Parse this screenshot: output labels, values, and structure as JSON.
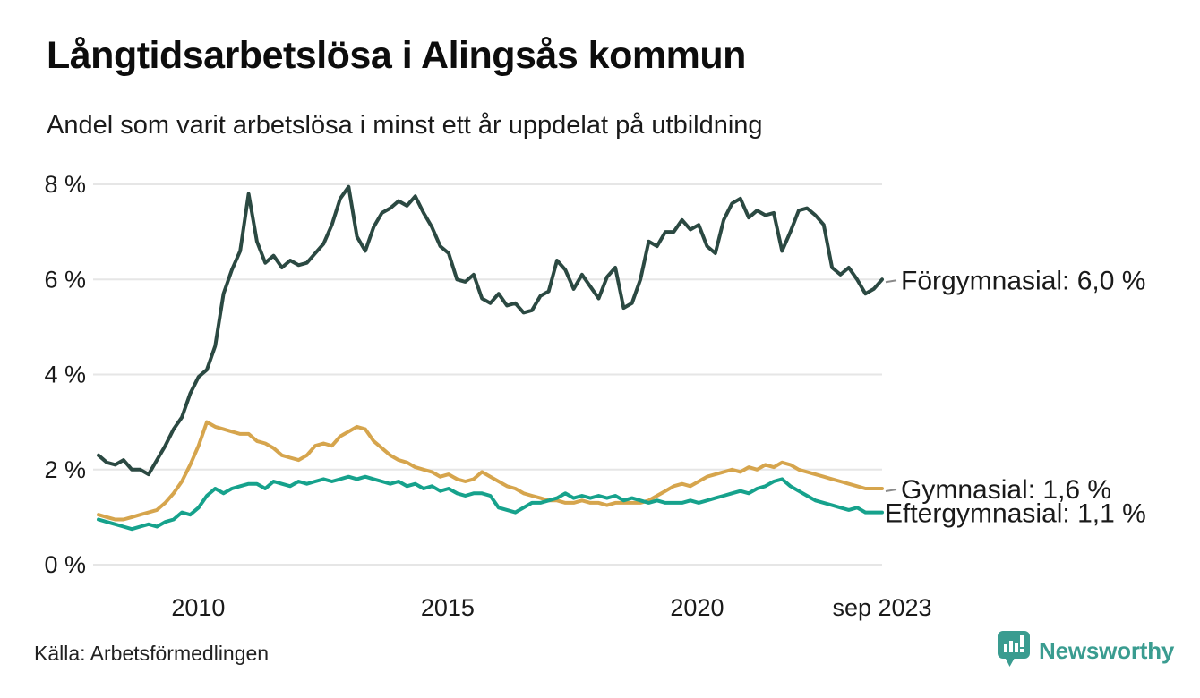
{
  "header": {
    "title": "Långtidsarbetslösa i Alingsås kommun",
    "subtitle": "Andel som varit arbetslösa i minst ett år uppdelat på utbildning"
  },
  "footer": {
    "source": "Källa: Arbetsförmedlingen",
    "brand": "Newsworthy"
  },
  "colors": {
    "text": "#1a1a1a",
    "grid": "#e6e6e6",
    "connector": "#8a8a8a",
    "brand_teal": "#3a9c90"
  },
  "chart_data": {
    "type": "line",
    "title": "Långtidsarbetslösa i Alingsås kommun",
    "subtitle": "Andel som varit arbetslösa i minst ett år uppdelat på utbildning",
    "unit": "%",
    "grid": true,
    "legend_position": "end-of-line-annotations",
    "x_axis": {
      "start": 2008.0,
      "end": 2023.708,
      "ticks": [
        {
          "label": "2010",
          "value": 2010.0
        },
        {
          "label": "2015",
          "value": 2015.0
        },
        {
          "label": "2020",
          "value": 2020.0
        },
        {
          "label": "sep 2023",
          "value": 2023.708
        }
      ]
    },
    "y_axis": {
      "range": [
        0,
        8
      ],
      "ticks": [
        {
          "label": "0 %",
          "value": 0
        },
        {
          "label": "2 %",
          "value": 2
        },
        {
          "label": "4 %",
          "value": 4
        },
        {
          "label": "6 %",
          "value": 6
        },
        {
          "label": "8 %",
          "value": 8
        }
      ]
    },
    "series": [
      {
        "name": "Förgymnasial",
        "end_label": "Förgymnasial: 6,0 %",
        "last_value_label": "6,0 %",
        "color": "#2b4942",
        "connector": true,
        "values": [
          2.3,
          2.15,
          2.1,
          2.2,
          2.0,
          2.0,
          1.9,
          2.2,
          2.5,
          2.85,
          3.1,
          3.6,
          3.95,
          4.1,
          4.6,
          5.7,
          6.2,
          6.6,
          7.8,
          6.8,
          6.35,
          6.5,
          6.25,
          6.4,
          6.3,
          6.35,
          6.55,
          6.75,
          7.15,
          7.7,
          7.95,
          6.9,
          6.6,
          7.1,
          7.4,
          7.5,
          7.65,
          7.55,
          7.75,
          7.4,
          7.1,
          6.7,
          6.55,
          6.0,
          5.95,
          6.1,
          5.6,
          5.5,
          5.7,
          5.45,
          5.5,
          5.3,
          5.35,
          5.65,
          5.75,
          6.4,
          6.2,
          5.8,
          6.1,
          5.85,
          5.6,
          6.05,
          6.25,
          5.4,
          5.5,
          6.0,
          6.8,
          6.7,
          7.0,
          7.0,
          7.25,
          7.05,
          7.15,
          6.7,
          6.55,
          7.25,
          7.6,
          7.7,
          7.3,
          7.45,
          7.35,
          7.4,
          6.6,
          7.0,
          7.45,
          7.5,
          7.35,
          7.15,
          6.25,
          6.1,
          6.25,
          6.0,
          5.7,
          5.8,
          6.0
        ]
      },
      {
        "name": "Gymnasial",
        "end_label": "Gymnasial: 1,6 %",
        "last_value_label": "1,6 %",
        "color": "#d6a54d",
        "connector": true,
        "values": [
          1.05,
          1.0,
          0.95,
          0.95,
          1.0,
          1.05,
          1.1,
          1.15,
          1.3,
          1.5,
          1.75,
          2.1,
          2.5,
          3.0,
          2.9,
          2.85,
          2.8,
          2.75,
          2.75,
          2.6,
          2.55,
          2.45,
          2.3,
          2.25,
          2.2,
          2.3,
          2.5,
          2.55,
          2.5,
          2.7,
          2.8,
          2.9,
          2.85,
          2.6,
          2.45,
          2.3,
          2.2,
          2.15,
          2.05,
          2.0,
          1.95,
          1.85,
          1.9,
          1.8,
          1.75,
          1.8,
          1.95,
          1.85,
          1.75,
          1.65,
          1.6,
          1.5,
          1.45,
          1.4,
          1.35,
          1.35,
          1.3,
          1.3,
          1.35,
          1.3,
          1.3,
          1.25,
          1.3,
          1.3,
          1.3,
          1.3,
          1.35,
          1.45,
          1.55,
          1.65,
          1.7,
          1.65,
          1.75,
          1.85,
          1.9,
          1.95,
          2.0,
          1.95,
          2.05,
          2.0,
          2.1,
          2.05,
          2.15,
          2.1,
          2.0,
          1.95,
          1.9,
          1.85,
          1.8,
          1.75,
          1.7,
          1.65,
          1.6,
          1.6,
          1.6
        ]
      },
      {
        "name": "Eftergymnasial",
        "end_label": "Eftergymnasial: 1,1 %",
        "last_value_label": "1,1 %",
        "color": "#16a28c",
        "connector": false,
        "values": [
          0.95,
          0.9,
          0.85,
          0.8,
          0.75,
          0.8,
          0.85,
          0.8,
          0.9,
          0.95,
          1.1,
          1.05,
          1.2,
          1.45,
          1.6,
          1.5,
          1.6,
          1.65,
          1.7,
          1.7,
          1.6,
          1.75,
          1.7,
          1.65,
          1.75,
          1.7,
          1.75,
          1.8,
          1.75,
          1.8,
          1.85,
          1.8,
          1.85,
          1.8,
          1.75,
          1.7,
          1.75,
          1.65,
          1.7,
          1.6,
          1.65,
          1.55,
          1.6,
          1.5,
          1.45,
          1.5,
          1.5,
          1.45,
          1.2,
          1.15,
          1.1,
          1.2,
          1.3,
          1.3,
          1.35,
          1.4,
          1.5,
          1.4,
          1.45,
          1.4,
          1.45,
          1.4,
          1.45,
          1.35,
          1.4,
          1.35,
          1.3,
          1.35,
          1.3,
          1.3,
          1.3,
          1.35,
          1.3,
          1.35,
          1.4,
          1.45,
          1.5,
          1.55,
          1.5,
          1.6,
          1.65,
          1.75,
          1.8,
          1.65,
          1.55,
          1.45,
          1.35,
          1.3,
          1.25,
          1.2,
          1.15,
          1.2,
          1.1,
          1.1,
          1.1
        ]
      }
    ]
  }
}
